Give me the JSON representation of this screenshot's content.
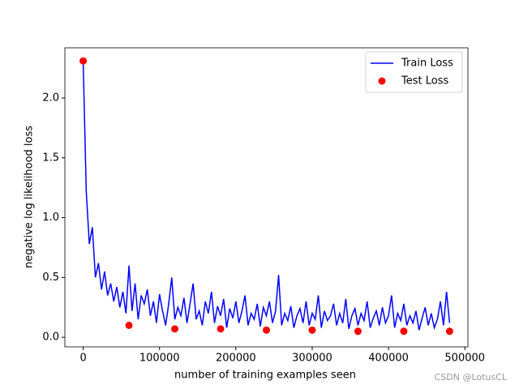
{
  "chart_data": {
    "type": "line",
    "xlabel": "number of training examples seen",
    "ylabel": "negative log likelihood loss",
    "xlim": [
      -24000,
      504000
    ],
    "ylim": [
      -0.08,
      2.42
    ],
    "xticks": [
      0,
      100000,
      200000,
      300000,
      400000,
      500000
    ],
    "yticks": [
      {
        "value": 0,
        "label": "0.0"
      },
      0.5,
      {
        "value": 1,
        "label": "1.0"
      },
      1.5,
      {
        "value": 2,
        "label": "2.0"
      }
    ],
    "legend": "upper right",
    "watermark": "CSDN @LotusCL",
    "series": [
      {
        "name": "Train Loss",
        "type": "line",
        "color": "#0000ff",
        "x": [
          0,
          4000,
          8000,
          12000,
          16000,
          20000,
          24000,
          28000,
          32000,
          36000,
          40000,
          44000,
          48000,
          52000,
          56000,
          60000,
          64000,
          68000,
          72000,
          76000,
          80000,
          84000,
          88000,
          92000,
          96000,
          100000,
          104000,
          108000,
          112000,
          116000,
          120000,
          124000,
          128000,
          132000,
          136000,
          140000,
          144000,
          148000,
          152000,
          156000,
          160000,
          164000,
          168000,
          172000,
          176000,
          180000,
          184000,
          188000,
          192000,
          196000,
          200000,
          204000,
          208000,
          212000,
          216000,
          220000,
          224000,
          228000,
          232000,
          236000,
          240000,
          244000,
          248000,
          252000,
          256000,
          260000,
          264000,
          268000,
          272000,
          276000,
          280000,
          284000,
          288000,
          292000,
          296000,
          300000,
          304000,
          308000,
          312000,
          316000,
          320000,
          324000,
          328000,
          332000,
          336000,
          340000,
          344000,
          348000,
          352000,
          356000,
          360000,
          364000,
          368000,
          372000,
          376000,
          380000,
          384000,
          388000,
          392000,
          396000,
          400000,
          404000,
          408000,
          412000,
          416000,
          420000,
          424000,
          428000,
          432000,
          436000,
          440000,
          444000,
          448000,
          452000,
          456000,
          460000,
          464000,
          468000,
          472000,
          476000,
          480000
        ],
        "values": [
          2.3,
          1.22,
          0.78,
          0.92,
          0.5,
          0.62,
          0.4,
          0.55,
          0.35,
          0.45,
          0.3,
          0.42,
          0.25,
          0.38,
          0.2,
          0.6,
          0.22,
          0.45,
          0.15,
          0.35,
          0.28,
          0.4,
          0.18,
          0.3,
          0.12,
          0.36,
          0.22,
          0.1,
          0.28,
          0.5,
          0.15,
          0.25,
          0.18,
          0.33,
          0.12,
          0.28,
          0.45,
          0.15,
          0.22,
          0.1,
          0.3,
          0.2,
          0.38,
          0.12,
          0.26,
          0.18,
          0.32,
          0.08,
          0.24,
          0.16,
          0.3,
          0.12,
          0.22,
          0.35,
          0.1,
          0.2,
          0.15,
          0.28,
          0.09,
          0.25,
          0.18,
          0.3,
          0.12,
          0.22,
          0.52,
          0.1,
          0.2,
          0.14,
          0.26,
          0.08,
          0.18,
          0.24,
          0.12,
          0.3,
          0.1,
          0.2,
          0.15,
          0.35,
          0.08,
          0.22,
          0.14,
          0.18,
          0.28,
          0.1,
          0.2,
          0.12,
          0.32,
          0.07,
          0.18,
          0.24,
          0.1,
          0.2,
          0.14,
          0.3,
          0.08,
          0.16,
          0.22,
          0.1,
          0.25,
          0.12,
          0.18,
          0.35,
          0.08,
          0.2,
          0.14,
          0.28,
          0.1,
          0.18,
          0.12,
          0.22,
          0.06,
          0.16,
          0.25,
          0.1,
          0.2,
          0.08,
          0.15,
          0.3,
          0.1,
          0.38,
          0.12
        ]
      },
      {
        "name": "Test Loss",
        "type": "scatter",
        "color": "#ff0000",
        "x": [
          0,
          60000,
          120000,
          180000,
          240000,
          300000,
          360000,
          420000,
          480000
        ],
        "values": [
          2.31,
          0.1,
          0.07,
          0.07,
          0.06,
          0.06,
          0.05,
          0.05,
          0.05
        ]
      }
    ]
  }
}
